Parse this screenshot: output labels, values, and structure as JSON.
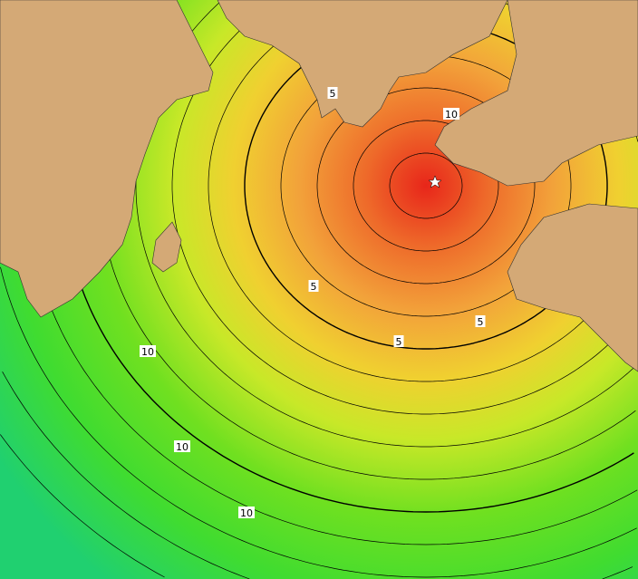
{
  "map": {
    "colors": {
      "land": "#d4a976",
      "near": "#e8321e",
      "mid": "#f0a030",
      "far": "#f0e020",
      "farther": "#60e020",
      "farthest": "#20d070",
      "deep": "#1040c0"
    },
    "epicenter_icon": "star-icon",
    "contour_labels": [
      {
        "id": "c1",
        "text": "5"
      },
      {
        "id": "c2",
        "text": "10"
      },
      {
        "id": "c3",
        "text": "5"
      },
      {
        "id": "c4",
        "text": "5"
      },
      {
        "id": "c5",
        "text": "5"
      },
      {
        "id": "c6",
        "text": "10"
      },
      {
        "id": "c7",
        "text": "10"
      },
      {
        "id": "c8",
        "text": "10"
      }
    ]
  }
}
